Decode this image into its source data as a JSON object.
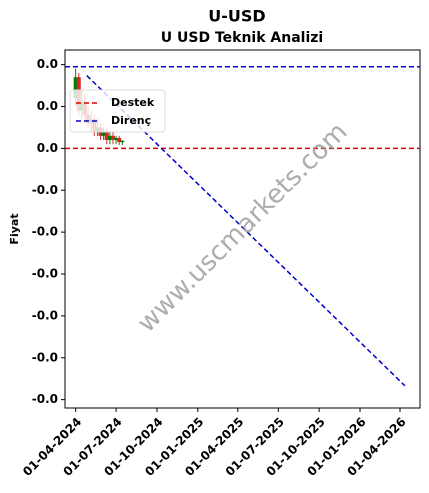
{
  "chart_data": {
    "type": "candlestick",
    "title": "U-USD",
    "subtitle": "U USD Teknik Analizi",
    "y_label": "Fiyat",
    "watermark": "www.uscmarkets.com",
    "up_color": "#008000",
    "down_color": "#d62728",
    "candles": {
      "x": [
        "2024-04-01",
        "2024-04-08",
        "2024-04-15",
        "2024-04-22",
        "2024-04-29",
        "2024-05-06",
        "2024-05-13",
        "2024-05-20",
        "2024-05-27",
        "2024-06-03",
        "2024-06-10",
        "2024-06-17",
        "2024-06-24",
        "2024-07-01",
        "2024-07-08",
        "2024-07-15"
      ],
      "open": [
        0.012,
        0.017,
        0.009,
        0.011,
        0.008,
        0.006,
        0.007,
        0.004,
        0.005,
        0.003,
        0.004,
        0.002,
        0.003,
        0.002,
        0.0025,
        0.0015
      ],
      "high": [
        0.019,
        0.018,
        0.014,
        0.013,
        0.01,
        0.009,
        0.008,
        0.007,
        0.006,
        0.005,
        0.005,
        0.004,
        0.004,
        0.003,
        0.003,
        0.002
      ],
      "low": [
        0.01,
        0.008,
        0.007,
        0.006,
        0.005,
        0.004,
        0.003,
        0.003,
        0.002,
        0.002,
        0.001,
        0.001,
        0.001,
        0.001,
        0.0008,
        0.0008
      ],
      "close": [
        0.017,
        0.009,
        0.011,
        0.008,
        0.006,
        0.007,
        0.004,
        0.005,
        0.003,
        0.004,
        0.002,
        0.003,
        0.002,
        0.0025,
        0.0015,
        0.0018
      ]
    },
    "hlines": [
      {
        "name": "Destek",
        "value": 0,
        "color": "#e00000"
      },
      {
        "value": 0.0195,
        "color": "#0000cc"
      }
    ],
    "trendlines": [
      {
        "name": "Direnç",
        "color": "#0000cc",
        "x": [
          "2024-04-26",
          "2026-04-12"
        ],
        "values": [
          0.0174,
          -0.0567
        ]
      }
    ],
    "xlim": [
      "2024-03-08",
      "2026-05-16"
    ],
    "xticks": [
      {
        "value": "2024-04-01",
        "label": "01-04-2024"
      },
      {
        "value": "2024-07-01",
        "label": "01-07-2024"
      },
      {
        "value": "2024-10-01",
        "label": "01-10-2024"
      },
      {
        "value": "2025-01-01",
        "label": "01-01-2025"
      },
      {
        "value": "2025-04-01",
        "label": "01-04-2025"
      },
      {
        "value": "2025-07-01",
        "label": "01-07-2025"
      },
      {
        "value": "2025-10-01",
        "label": "01-10-2025"
      },
      {
        "value": "2026-01-01",
        "label": "01-01-2026"
      },
      {
        "value": "2026-04-01",
        "label": "01-04-2026"
      }
    ],
    "ylim": [
      -0.062,
      0.0235
    ],
    "yticks": [
      {
        "value": 0.02,
        "label": "0.0"
      },
      {
        "value": 0.01,
        "label": "0.0"
      },
      {
        "value": 0,
        "label": "0.0"
      },
      {
        "value": -0.01,
        "label": "-0.0"
      },
      {
        "value": -0.02,
        "label": "-0.0"
      },
      {
        "value": -0.03,
        "label": "-0.0"
      },
      {
        "value": -0.04,
        "label": "-0.0"
      },
      {
        "value": -0.05,
        "label": "-0.0"
      },
      {
        "value": -0.06,
        "label": "-0.0"
      }
    ]
  }
}
